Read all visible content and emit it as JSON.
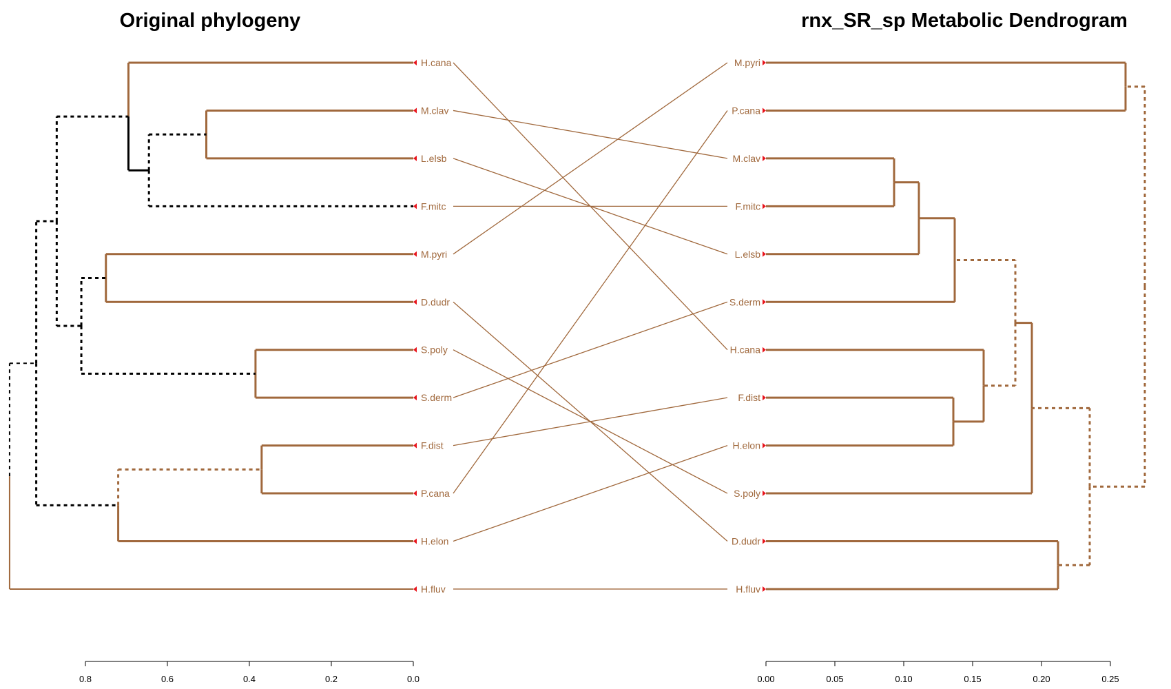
{
  "titles": {
    "left": "Original phylogeny",
    "right": "rnx_SR_sp Metabolic Dendrogram"
  },
  "colors": {
    "branch": "#a0683c",
    "highlight": "#000000",
    "leaf_marker": "#e8141c",
    "connector": "#a0683c"
  },
  "left_tree": {
    "leaves": [
      "H.cana",
      "M.clav",
      "L.elsb",
      "F.mitc",
      "M.pyri",
      "D.dudr",
      "S.poly",
      "S.derm",
      "F.dist",
      "P.cana",
      "H.elon",
      "H.fluv"
    ],
    "axis": {
      "ticks": [
        0.8,
        0.6,
        0.4,
        0.2,
        0.0
      ],
      "range": [
        0.985,
        0.0
      ]
    },
    "nodes": [
      {
        "id": "a1",
        "children": [
          "M.clav",
          "L.elsb"
        ],
        "height": 0.505,
        "style": "solid"
      },
      {
        "id": "a2",
        "children": [
          "a1",
          "F.mitc"
        ],
        "height": 0.645,
        "style": "dashed"
      },
      {
        "id": "a3",
        "children": [
          "H.cana",
          "a2"
        ],
        "height": 0.695,
        "style": "highlight"
      },
      {
        "id": "b1",
        "children": [
          "M.pyri",
          "D.dudr"
        ],
        "height": 0.75,
        "style": "solid"
      },
      {
        "id": "c1",
        "children": [
          "S.poly",
          "S.derm"
        ],
        "height": 0.385,
        "style": "solid"
      },
      {
        "id": "bc",
        "children": [
          "b1",
          "c1"
        ],
        "height": 0.81,
        "style": "dashed"
      },
      {
        "id": "ab",
        "children": [
          "a3",
          "bc"
        ],
        "height": 0.87,
        "style": "dashed"
      },
      {
        "id": "d1",
        "children": [
          "F.dist",
          "P.cana"
        ],
        "height": 0.37,
        "style": "solid"
      },
      {
        "id": "d2",
        "children": [
          "d1",
          "H.elon"
        ],
        "height": 0.72,
        "style": "dashed-branch"
      },
      {
        "id": "abd",
        "children": [
          "ab",
          "d2"
        ],
        "height": 0.92,
        "style": "dashed"
      },
      {
        "id": "root",
        "children": [
          "abd",
          "H.fluv"
        ],
        "height": 0.985,
        "style": "mixed"
      }
    ]
  },
  "right_tree": {
    "leaves": [
      "M.pyri",
      "P.cana",
      "M.clav",
      "F.mitc",
      "L.elsb",
      "S.derm",
      "H.cana",
      "F.dist",
      "H.elon",
      "S.poly",
      "D.dudr",
      "H.fluv"
    ],
    "axis": {
      "ticks": [
        0.0,
        0.05,
        0.1,
        0.15,
        0.2,
        0.25
      ],
      "labels": [
        "0.00",
        "0.05",
        "0.10",
        "0.15",
        "0.20",
        "0.25"
      ]
    },
    "nodes": [
      {
        "id": "r1",
        "children": [
          "M.pyri",
          "P.cana"
        ],
        "height": 0.261,
        "style": "solid"
      },
      {
        "id": "r2",
        "children": [
          "M.clav",
          "F.mitc"
        ],
        "height": 0.093,
        "style": "solid"
      },
      {
        "id": "r3",
        "children": [
          "r2",
          "L.elsb"
        ],
        "height": 0.111,
        "style": "solid"
      },
      {
        "id": "r4",
        "children": [
          "r3",
          "S.derm"
        ],
        "height": 0.137,
        "style": "solid"
      },
      {
        "id": "r5",
        "children": [
          "F.dist",
          "H.elon"
        ],
        "height": 0.136,
        "style": "solid"
      },
      {
        "id": "r6",
        "children": [
          "H.cana",
          "r5"
        ],
        "height": 0.158,
        "style": "solid"
      },
      {
        "id": "r7",
        "children": [
          "r4",
          "r6"
        ],
        "height": 0.181,
        "style": "dashed"
      },
      {
        "id": "r8",
        "children": [
          "r7",
          "S.poly"
        ],
        "height": 0.193,
        "style": "solid"
      },
      {
        "id": "r9",
        "children": [
          "D.dudr",
          "H.fluv"
        ],
        "height": 0.212,
        "style": "solid"
      },
      {
        "id": "r10",
        "children": [
          "r8",
          "r9"
        ],
        "height": 0.235,
        "style": "dashed"
      },
      {
        "id": "r11",
        "children": [
          "r1",
          "r10"
        ],
        "height": 0.275,
        "style": "dashed"
      }
    ]
  }
}
